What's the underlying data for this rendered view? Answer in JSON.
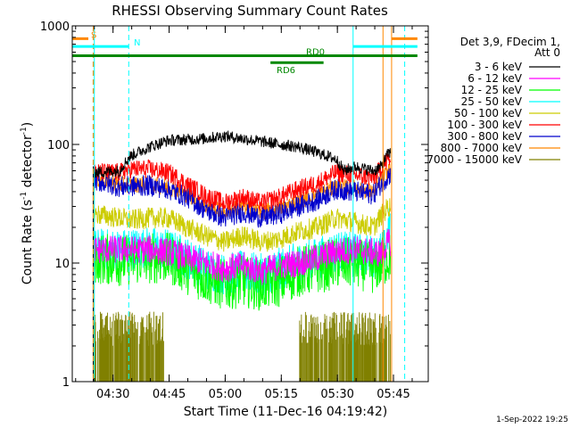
{
  "chart_data": {
    "type": "line",
    "title": "RHESSI Observing Summary Count Rates",
    "xlabel": "Start Time (11-Dec-16 04:19:42)",
    "ylabel_main": "Count Rate (s",
    "ylabel_sup1": "-1",
    "ylabel_mid": " detector",
    "ylabel_sup2": "-1",
    "ylabel_end": ")",
    "yscale": "log",
    "ylim": [
      1,
      1000
    ],
    "xlim_minutes": [
      -0.6,
      94.6
    ],
    "y_ticks": [
      "1",
      "10",
      "100",
      "1000"
    ],
    "x_ticks": [
      {
        "label": "04:30",
        "minute": 10.3
      },
      {
        "label": "04:45",
        "minute": 25.3
      },
      {
        "label": "05:00",
        "minute": 40.3
      },
      {
        "label": "05:15",
        "minute": 55.3
      },
      {
        "label": "05:30",
        "minute": 70.3
      },
      {
        "label": "05:45",
        "minute": 85.3
      }
    ],
    "legend_header": [
      "Det 3,9, FDecim 1,",
      "Att 0"
    ],
    "series": [
      {
        "name": "3 - 6 keV",
        "color": "#000000",
        "data_start": 5,
        "data_end": 84.5,
        "base": [
          [
            5,
            58
          ],
          [
            12,
            60
          ],
          [
            15,
            80
          ],
          [
            20,
            95
          ],
          [
            25,
            108
          ],
          [
            35,
            112
          ],
          [
            40,
            118
          ],
          [
            45,
            112
          ],
          [
            55,
            100
          ],
          [
            60,
            95
          ],
          [
            65,
            85
          ],
          [
            70,
            75
          ],
          [
            72,
            60
          ],
          [
            75,
            65
          ],
          [
            80,
            60
          ],
          [
            82,
            65
          ],
          [
            84,
            85
          ]
        ]
      },
      {
        "name": "6 - 12 keV",
        "color": "#ff00ff",
        "data_start": 5,
        "data_end": 84.5,
        "base": [
          [
            5,
            13
          ],
          [
            12,
            13
          ],
          [
            20,
            13
          ],
          [
            25,
            12.5
          ],
          [
            30,
            11
          ],
          [
            40,
            9
          ],
          [
            45,
            9.5
          ],
          [
            50,
            8.5
          ],
          [
            55,
            9.5
          ],
          [
            60,
            10
          ],
          [
            65,
            11
          ],
          [
            70,
            12.5
          ],
          [
            75,
            13
          ],
          [
            82,
            12
          ],
          [
            84,
            15
          ]
        ]
      },
      {
        "name": "12 - 25 keV",
        "color": "#00ff00",
        "data_start": 5,
        "data_end": 84.5,
        "base": [
          [
            5,
            11
          ],
          [
            12,
            10.5
          ],
          [
            20,
            11
          ],
          [
            25,
            11
          ],
          [
            30,
            9
          ],
          [
            35,
            7.5
          ],
          [
            40,
            6.5
          ],
          [
            45,
            7
          ],
          [
            50,
            6.5
          ],
          [
            55,
            7
          ],
          [
            60,
            8.5
          ],
          [
            65,
            9
          ],
          [
            70,
            10
          ],
          [
            75,
            10
          ],
          [
            80,
            9
          ],
          [
            84,
            11
          ]
        ]
      },
      {
        "name": "25 - 50 keV",
        "color": "#00ffff",
        "data_start": 5,
        "data_end": 84.5,
        "base": [
          [
            5,
            13
          ],
          [
            12,
            13
          ],
          [
            20,
            13.5
          ],
          [
            25,
            13
          ],
          [
            30,
            11
          ],
          [
            35,
            9
          ],
          [
            40,
            8
          ],
          [
            45,
            8.5
          ],
          [
            50,
            8
          ],
          [
            55,
            9
          ],
          [
            60,
            10
          ],
          [
            65,
            11
          ],
          [
            70,
            12.5
          ],
          [
            75,
            12
          ],
          [
            80,
            11.5
          ],
          [
            83,
            13
          ],
          [
            84.5,
            22
          ]
        ]
      },
      {
        "name": "50 - 100 keV",
        "color": "#cccc00",
        "data_start": 5,
        "data_end": 84.5,
        "base": [
          [
            5,
            26
          ],
          [
            12,
            24
          ],
          [
            15,
            23
          ],
          [
            20,
            24
          ],
          [
            25,
            24
          ],
          [
            30,
            20
          ],
          [
            35,
            17
          ],
          [
            40,
            15
          ],
          [
            45,
            17
          ],
          [
            50,
            15
          ],
          [
            55,
            16
          ],
          [
            60,
            18.5
          ],
          [
            65,
            20
          ],
          [
            70,
            24
          ],
          [
            75,
            22
          ],
          [
            80,
            20
          ],
          [
            84,
            30
          ]
        ]
      },
      {
        "name": "100 - 300 keV",
        "color": "#ff0000",
        "data_start": 5,
        "data_end": 84.5,
        "base": [
          [
            5,
            58
          ],
          [
            12,
            58
          ],
          [
            15,
            62
          ],
          [
            20,
            62
          ],
          [
            25,
            58
          ],
          [
            30,
            46
          ],
          [
            35,
            37
          ],
          [
            40,
            32
          ],
          [
            45,
            36
          ],
          [
            50,
            32
          ],
          [
            55,
            36
          ],
          [
            60,
            42
          ],
          [
            65,
            47
          ],
          [
            70,
            58
          ],
          [
            75,
            55
          ],
          [
            80,
            52
          ],
          [
            84,
            75
          ]
        ]
      },
      {
        "name": "300 - 800 keV",
        "color": "#0000cc",
        "data_start": 5,
        "data_end": 84.5,
        "base": [
          [
            5,
            50
          ],
          [
            12,
            44
          ],
          [
            20,
            45
          ],
          [
            25,
            42
          ],
          [
            30,
            36
          ],
          [
            35,
            28
          ],
          [
            40,
            24
          ],
          [
            45,
            27
          ],
          [
            50,
            24
          ],
          [
            55,
            26
          ],
          [
            60,
            30
          ],
          [
            65,
            34
          ],
          [
            70,
            42
          ],
          [
            75,
            40
          ],
          [
            80,
            38
          ],
          [
            84,
            55
          ]
        ]
      },
      {
        "name": "800 - 7000 keV",
        "color": "#ff8800",
        "data_start": 5,
        "data_end": 84.5,
        "base": [
          [
            5,
            52
          ],
          [
            12,
            46
          ],
          [
            20,
            46
          ],
          [
            25,
            44
          ],
          [
            30,
            38
          ],
          [
            35,
            30
          ],
          [
            40,
            27
          ],
          [
            45,
            30
          ],
          [
            50,
            27
          ],
          [
            55,
            29
          ],
          [
            60,
            33
          ],
          [
            65,
            38
          ],
          [
            70,
            44
          ],
          [
            75,
            43
          ],
          [
            80,
            40
          ],
          [
            84,
            60
          ]
        ]
      },
      {
        "name": "7000 - 15000 keV",
        "color": "#808000",
        "data_start": 5,
        "data_end": 84.5,
        "base": [
          [
            5,
            1
          ],
          [
            84.5,
            1
          ]
        ]
      }
    ],
    "vertical_lines": [
      {
        "minute": 5,
        "color": "#ff8800",
        "style": "dashed"
      },
      {
        "minute": 5.3,
        "color": "#00ffff",
        "style": "solid"
      },
      {
        "minute": 14.5,
        "color": "#00ffff",
        "style": "dashed"
      },
      {
        "minute": 74.5,
        "color": "#00ffff",
        "style": "solid"
      },
      {
        "minute": 82.5,
        "color": "#ff8800",
        "style": "solid"
      },
      {
        "minute": 84.8,
        "color": "#ff8800",
        "style": "solid"
      },
      {
        "minute": 88.3,
        "color": "#00ffff",
        "style": "dashed"
      }
    ],
    "top_bars": [
      {
        "label": "S",
        "color": "#ff8800",
        "y": 780,
        "segments": [
          [
            -0.6,
            3.7
          ],
          [
            84.8,
            91.7
          ]
        ]
      },
      {
        "label": "N",
        "color": "#00ffff",
        "y": 670,
        "segments": [
          [
            -0.6,
            14.5
          ],
          [
            74.5,
            91.7
          ]
        ]
      },
      {
        "label": "RD0",
        "color": "#008800",
        "y": 560,
        "segments": [
          [
            -0.6,
            91.7
          ]
        ]
      },
      {
        "label": "RD6",
        "color": "#008800",
        "y": 490,
        "segments": [
          [
            52.4,
            66.6
          ]
        ]
      }
    ],
    "grid": false,
    "legend_position": "right"
  },
  "timestamp": "1-Sep-2022 19:25"
}
